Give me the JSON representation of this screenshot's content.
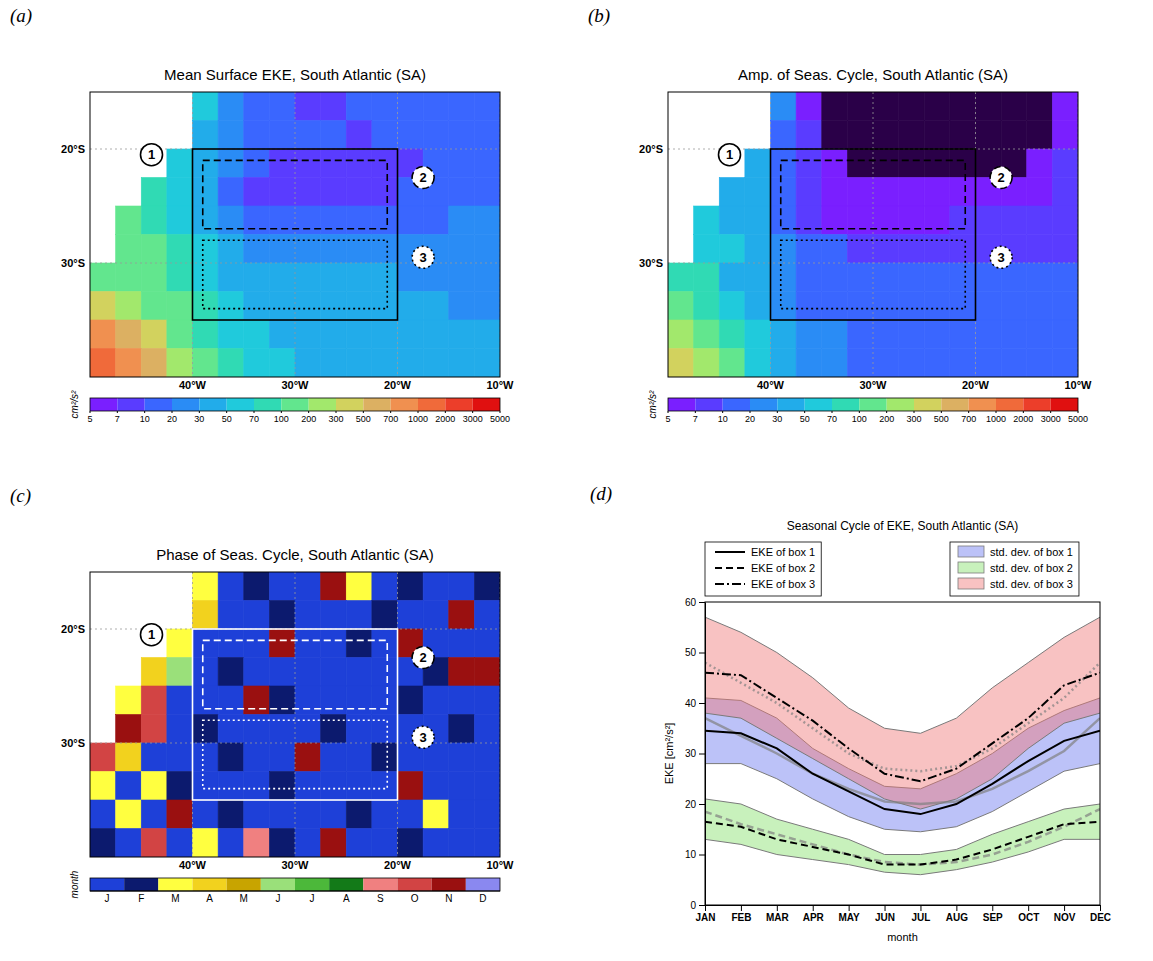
{
  "chart_data": [
    {
      "type": "heatmap",
      "panel_label": "(a)",
      "title": "Mean Surface EKE, South Atlantic (SA)",
      "xlim": [
        -50,
        -10
      ],
      "ylim": [
        -40,
        -15
      ],
      "grid": true,
      "xticks": [
        {
          "value": -40,
          "label": "40°W"
        },
        {
          "value": -30,
          "label": "30°W"
        },
        {
          "value": -20,
          "label": "20°W"
        },
        {
          "value": -10,
          "label": "10°W"
        }
      ],
      "yticks": [
        {
          "value": -30,
          "label": "30°S"
        },
        {
          "value": -20,
          "label": "20°S"
        }
      ],
      "x_edges": [
        -50,
        -47.5,
        -45,
        -42.5,
        -40,
        -37.5,
        -35,
        -32.5,
        -30,
        -27.5,
        -25,
        -22.5,
        -20,
        -17.5,
        -15,
        -12.5,
        -10
      ],
      "y_edges": [
        -15,
        -17.5,
        -20,
        -22.5,
        -25,
        -27.5,
        -30,
        -32.5,
        -35,
        -37.5,
        -40
      ],
      "cells": [
        [
          null,
          null,
          null,
          null,
          50,
          20,
          15,
          12,
          8,
          8,
          10,
          15,
          15,
          15,
          15,
          15
        ],
        [
          null,
          null,
          null,
          null,
          40,
          25,
          15,
          12,
          10,
          10,
          8,
          12,
          15,
          15,
          15,
          15
        ],
        [
          null,
          null,
          null,
          60,
          40,
          20,
          10,
          8,
          8,
          8,
          8,
          8,
          8,
          12,
          15,
          15
        ],
        [
          null,
          null,
          80,
          60,
          35,
          15,
          8,
          7,
          7,
          8,
          8,
          8,
          10,
          15,
          15,
          15
        ],
        [
          null,
          100,
          80,
          60,
          40,
          20,
          12,
          10,
          10,
          10,
          12,
          12,
          15,
          15,
          20,
          20
        ],
        [
          null,
          120,
          100,
          70,
          50,
          35,
          25,
          20,
          20,
          20,
          20,
          20,
          20,
          20,
          20,
          20
        ],
        [
          150,
          150,
          100,
          80,
          60,
          45,
          35,
          30,
          30,
          30,
          30,
          30,
          25,
          25,
          25,
          25
        ],
        [
          300,
          200,
          150,
          100,
          70,
          50,
          40,
          35,
          40,
          35,
          35,
          30,
          30,
          30,
          25,
          25
        ],
        [
          700,
          500,
          300,
          150,
          80,
          60,
          50,
          45,
          40,
          40,
          35,
          35,
          30,
          30,
          30,
          30
        ],
        [
          1000,
          800,
          500,
          200,
          100,
          70,
          60,
          50,
          45,
          40,
          40,
          35,
          35,
          30,
          30,
          30
        ]
      ],
      "colorbar": {
        "label": "cm²/s²",
        "ticks": [
          5,
          7,
          10,
          20,
          30,
          50,
          70,
          100,
          200,
          300,
          500,
          700,
          1000,
          2000,
          3000,
          5000
        ]
      },
      "boxes": [
        {
          "label": "1",
          "lon": [
            -40,
            -20
          ],
          "lat": [
            -35,
            -20
          ],
          "line_style": "solid",
          "color": "#000000",
          "label_lon": -44,
          "label_lat": -20.5
        },
        {
          "label": "2",
          "lon": [
            -39,
            -21
          ],
          "lat": [
            -27,
            -21
          ],
          "line_style": "dashed",
          "color": "#000000",
          "label_lon": -17.5,
          "label_lat": -22.5
        },
        {
          "label": "3",
          "lon": [
            -39,
            -21
          ],
          "lat": [
            -34,
            -28
          ],
          "line_style": "dotted",
          "color": "#000000",
          "label_lon": -17.5,
          "label_lat": -29.5
        }
      ]
    },
    {
      "type": "heatmap",
      "panel_label": "(b)",
      "title": "Amp. of Seas. Cycle, South Atlantic (SA)",
      "xlim": [
        -50,
        -10
      ],
      "ylim": [
        -40,
        -15
      ],
      "grid": true,
      "xticks": [
        {
          "value": -40,
          "label": "40°W"
        },
        {
          "value": -30,
          "label": "30°W"
        },
        {
          "value": -20,
          "label": "20°W"
        },
        {
          "value": -10,
          "label": "10°W"
        }
      ],
      "yticks": [
        {
          "value": -30,
          "label": "30°S"
        },
        {
          "value": -20,
          "label": "20°S"
        }
      ],
      "x_edges": [
        -50,
        -47.5,
        -45,
        -42.5,
        -40,
        -37.5,
        -35,
        -32.5,
        -30,
        -27.5,
        -25,
        -22.5,
        -20,
        -17.5,
        -15,
        -12.5,
        -10
      ],
      "y_edges": [
        -15,
        -17.5,
        -20,
        -22.5,
        -25,
        -27.5,
        -30,
        -32.5,
        -35,
        -37.5,
        -40
      ],
      "cells": [
        [
          null,
          null,
          null,
          null,
          20,
          5,
          4,
          3,
          3,
          3,
          3,
          3,
          3,
          3,
          4,
          5
        ],
        [
          null,
          null,
          null,
          null,
          15,
          7,
          4,
          3,
          3,
          3,
          3,
          3,
          3,
          3,
          4,
          5
        ],
        [
          null,
          null,
          null,
          30,
          15,
          7,
          5,
          4,
          4,
          4,
          4,
          4,
          4,
          4,
          5,
          7
        ],
        [
          null,
          null,
          40,
          30,
          15,
          7,
          6,
          5,
          5,
          5,
          6,
          6,
          5,
          5,
          6,
          7
        ],
        [
          null,
          50,
          40,
          30,
          15,
          8,
          6,
          6,
          6,
          6,
          6,
          7,
          7,
          7,
          7,
          7
        ],
        [
          null,
          60,
          50,
          30,
          20,
          12,
          10,
          8,
          8,
          8,
          8,
          8,
          8,
          8,
          8,
          8
        ],
        [
          70,
          70,
          40,
          30,
          20,
          15,
          12,
          10,
          10,
          10,
          10,
          10,
          10,
          10,
          10,
          10
        ],
        [
          100,
          80,
          50,
          40,
          25,
          15,
          15,
          12,
          12,
          12,
          10,
          10,
          10,
          10,
          10,
          10
        ],
        [
          200,
          150,
          80,
          50,
          30,
          20,
          20,
          15,
          15,
          12,
          12,
          12,
          10,
          10,
          10,
          10
        ],
        [
          300,
          200,
          100,
          50,
          30,
          25,
          20,
          15,
          15,
          15,
          12,
          12,
          12,
          12,
          12,
          10
        ]
      ],
      "colorbar": {
        "label": "cm²/s²",
        "ticks": [
          5,
          7,
          10,
          20,
          30,
          50,
          70,
          100,
          200,
          300,
          500,
          700,
          1000,
          2000,
          3000,
          5000
        ]
      },
      "boxes": [
        {
          "label": "1",
          "lon": [
            -40,
            -20
          ],
          "lat": [
            -35,
            -20
          ],
          "line_style": "solid",
          "color": "#000000",
          "label_lon": -44,
          "label_lat": -20.5
        },
        {
          "label": "2",
          "lon": [
            -39,
            -21
          ],
          "lat": [
            -27,
            -21
          ],
          "line_style": "dashed",
          "color": "#000000",
          "label_lon": -17.5,
          "label_lat": -22.5
        },
        {
          "label": "3",
          "lon": [
            -39,
            -21
          ],
          "lat": [
            -34,
            -28
          ],
          "line_style": "dotted",
          "color": "#000000",
          "label_lon": -17.5,
          "label_lat": -29.5
        }
      ]
    },
    {
      "type": "phase",
      "panel_label": "(c)",
      "title": "Phase of Seas. Cycle, South Atlantic (SA)",
      "xlim": [
        -50,
        -10
      ],
      "ylim": [
        -40,
        -15
      ],
      "grid": true,
      "xticks": [
        {
          "value": -40,
          "label": "40°W"
        },
        {
          "value": -30,
          "label": "30°W"
        },
        {
          "value": -20,
          "label": "20°W"
        },
        {
          "value": -10,
          "label": "10°W"
        }
      ],
      "yticks": [
        {
          "value": -30,
          "label": "30°S"
        },
        {
          "value": -20,
          "label": "20°S"
        }
      ],
      "x_edges": [
        -50,
        -47.5,
        -45,
        -42.5,
        -40,
        -37.5,
        -35,
        -32.5,
        -30,
        -27.5,
        -25,
        -22.5,
        -20,
        -17.5,
        -15,
        -12.5,
        -10
      ],
      "y_edges": [
        -15,
        -17.5,
        -20,
        -22.5,
        -25,
        -27.5,
        -30,
        -32.5,
        -35,
        -37.5,
        -40
      ],
      "cells": [
        [
          null,
          null,
          null,
          null,
          3,
          1,
          2,
          1,
          1,
          11,
          3,
          1,
          2,
          1,
          1,
          2
        ],
        [
          null,
          null,
          null,
          null,
          4,
          1,
          1,
          2,
          1,
          1,
          1,
          2,
          1,
          1,
          11,
          1
        ],
        [
          null,
          null,
          null,
          3,
          1,
          1,
          1,
          11,
          1,
          1,
          2,
          1,
          11,
          1,
          1,
          1
        ],
        [
          null,
          null,
          4,
          6,
          1,
          2,
          1,
          1,
          1,
          1,
          1,
          1,
          1,
          2,
          11,
          11
        ],
        [
          null,
          3,
          10,
          1,
          1,
          1,
          11,
          2,
          1,
          1,
          1,
          1,
          2,
          1,
          1,
          1
        ],
        [
          null,
          11,
          10,
          1,
          2,
          1,
          1,
          1,
          1,
          2,
          1,
          1,
          1,
          1,
          2,
          1
        ],
        [
          10,
          4,
          1,
          1,
          1,
          2,
          1,
          1,
          11,
          1,
          1,
          2,
          1,
          1,
          1,
          1
        ],
        [
          3,
          1,
          3,
          2,
          1,
          1,
          1,
          2,
          1,
          1,
          1,
          1,
          11,
          1,
          1,
          1
        ],
        [
          1,
          3,
          1,
          11,
          1,
          2,
          1,
          1,
          1,
          1,
          2,
          1,
          1,
          3,
          1,
          1
        ],
        [
          2,
          1,
          10,
          1,
          3,
          1,
          9,
          2,
          1,
          11,
          1,
          1,
          2,
          1,
          1,
          1
        ]
      ],
      "colorbar": {
        "label": "month",
        "range": [
          0.5,
          12.5
        ],
        "ticks": [
          {
            "value": 1,
            "label": "J"
          },
          {
            "value": 2,
            "label": "F"
          },
          {
            "value": 3,
            "label": "M"
          },
          {
            "value": 4,
            "label": "A"
          },
          {
            "value": 5,
            "label": "M"
          },
          {
            "value": 6,
            "label": "J"
          },
          {
            "value": 7,
            "label": "J"
          },
          {
            "value": 8,
            "label": "A"
          },
          {
            "value": 9,
            "label": "S"
          },
          {
            "value": 10,
            "label": "O"
          },
          {
            "value": 11,
            "label": "N"
          },
          {
            "value": 12,
            "label": "D"
          }
        ]
      },
      "boxes": [
        {
          "label": "1",
          "lon": [
            -40,
            -20
          ],
          "lat": [
            -35,
            -20
          ],
          "line_style": "solid",
          "color": "#ffffff",
          "label_lon": -44,
          "label_lat": -20.5
        },
        {
          "label": "2",
          "lon": [
            -39,
            -21
          ],
          "lat": [
            -27,
            -21
          ],
          "line_style": "dashed",
          "color": "#ffffff",
          "label_lon": -17.5,
          "label_lat": -22.5
        },
        {
          "label": "3",
          "lon": [
            -39,
            -21
          ],
          "lat": [
            -34,
            -28
          ],
          "line_style": "dotted",
          "color": "#ffffff",
          "label_lon": -17.5,
          "label_lat": -29.5
        }
      ]
    },
    {
      "type": "line",
      "panel_label": "(d)",
      "title": "Seasonal Cycle of EKE, South Atlantic (SA)",
      "x_label": "month",
      "y_label": "EKE [cm²/s²]",
      "categories": [
        "JAN",
        "FEB",
        "MAR",
        "APR",
        "MAY",
        "JUN",
        "JUL",
        "AUG",
        "SEP",
        "OCT",
        "NOV",
        "DEC"
      ],
      "ylim": [
        0,
        60
      ],
      "yticks": [
        0,
        10,
        20,
        30,
        40,
        50,
        60
      ],
      "grid": false,
      "legend": "top",
      "series": [
        {
          "name": "EKE of box 1",
          "color": "#000000",
          "line_style": "solid",
          "values": [
            34.5,
            34,
            31,
            26,
            22.5,
            19,
            18,
            20,
            24,
            28.5,
            32.5,
            34.5
          ]
        },
        {
          "name": "EKE of box 2",
          "color": "#000000",
          "line_style": "dashed",
          "values": [
            16.5,
            15.5,
            13,
            11.5,
            10,
            8,
            8,
            9,
            11,
            13.5,
            16,
            16.5
          ]
        },
        {
          "name": "EKE of box 3",
          "color": "#000000",
          "line_style": "dashdot",
          "values": [
            46,
            45.5,
            41,
            36.5,
            31,
            26,
            24.5,
            27,
            32,
            37,
            43.5,
            46
          ]
        }
      ],
      "fits": [
        {
          "color": "#808080",
          "line_style": "solid",
          "values": [
            37,
            33.5,
            30,
            26,
            23,
            20.5,
            20,
            20.5,
            23,
            26.5,
            30.5,
            37
          ]
        },
        {
          "color": "#808080",
          "line_style": "dashed",
          "values": [
            18.5,
            16,
            14,
            12,
            10,
            8.5,
            8,
            8.5,
            10,
            12.5,
            15.5,
            19
          ]
        },
        {
          "color": "#808080",
          "line_style": "dotted",
          "values": [
            48,
            44,
            40,
            35,
            30,
            27,
            26.5,
            27.5,
            31,
            36,
            41,
            48
          ]
        }
      ],
      "bands": [
        {
          "name": "std. dev. of box 1",
          "color": "#6a78f0",
          "lower": [
            28,
            28,
            25,
            21,
            17.5,
            15,
            14.5,
            15.5,
            18.5,
            22.5,
            26.5,
            28
          ],
          "upper": [
            41,
            40.5,
            37,
            31,
            27,
            23.5,
            23,
            26,
            30,
            35,
            38.5,
            41
          ]
        },
        {
          "name": "std. dev. of box 2",
          "color": "#86e06a",
          "lower": [
            13,
            12,
            10,
            9,
            8,
            6.5,
            6,
            7,
            8.5,
            10.5,
            13,
            13
          ],
          "upper": [
            21,
            20,
            17,
            15,
            13,
            10,
            10,
            11,
            14,
            16.5,
            19,
            20
          ]
        },
        {
          "name": "std. dev. of box 3",
          "color": "#f07878",
          "lower": [
            38,
            37,
            33,
            29,
            25,
            21,
            19,
            21,
            25,
            31,
            36,
            38
          ],
          "upper": [
            57,
            54,
            50,
            45,
            39,
            35,
            34,
            37,
            43,
            48,
            53,
            57
          ]
        }
      ]
    }
  ]
}
